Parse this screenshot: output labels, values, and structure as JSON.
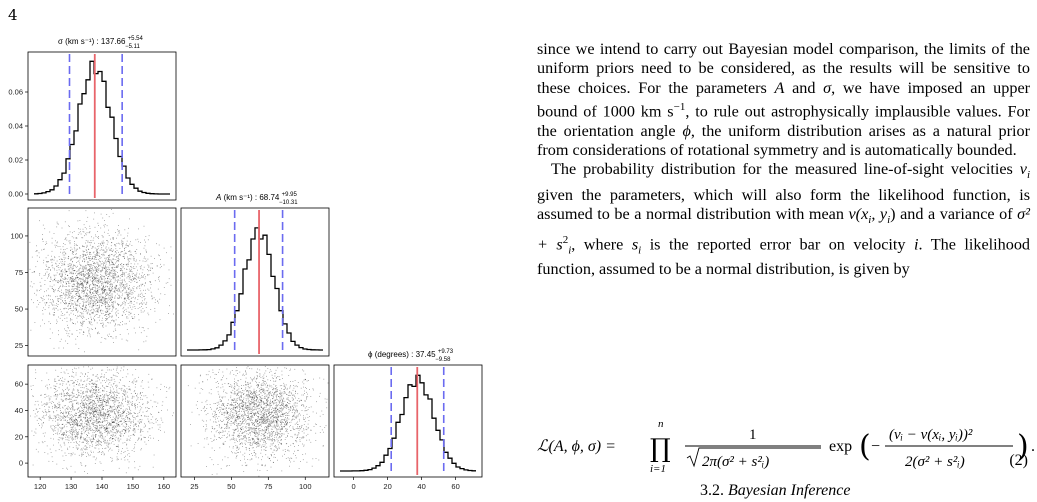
{
  "page_number": "4",
  "figure": {
    "panels": {
      "sigma_title": "σ (km s⁻¹) : 137.66",
      "sigma_sup": "+5.54",
      "sigma_sub": "−5.11",
      "A_title_italic": "A",
      "A_title": "(km s⁻¹) : 68.74",
      "A_sup": "+9.95",
      "A_sub": "−10.31",
      "phi_title": "ϕ (degrees) : 37.45",
      "phi_sup": "+9.73",
      "phi_sub": "−9.58"
    },
    "ticks": {
      "sigma_y": [
        "0.06",
        "0.04",
        "0.02",
        "0.00"
      ],
      "A_y": [
        "100",
        "75",
        "50",
        "25"
      ],
      "phi_y": [
        "60",
        "40",
        "20",
        "0"
      ],
      "sigma_x": [
        "120",
        "130",
        "140",
        "150",
        "160"
      ],
      "A_x": [
        "25",
        "50",
        "75",
        "100"
      ],
      "phi_x": [
        "0",
        "20",
        "40",
        "60"
      ]
    },
    "colors": {
      "median_line": "#e8646a",
      "quantile_line": "#6b6bf0",
      "hist": "#000000"
    }
  },
  "chart_data": [
    {
      "type": "histogram",
      "variable": "σ (km s⁻¹)",
      "median": 137.66,
      "upper_err": 5.54,
      "lower_err": 5.11,
      "x_range": [
        118,
        162
      ],
      "y_range": [
        0,
        0.08
      ]
    },
    {
      "type": "histogram",
      "variable": "A (km s⁻¹)",
      "median": 68.74,
      "upper_err": 9.95,
      "lower_err": 10.31,
      "x_range": [
        20,
        112
      ],
      "y_range": [
        0,
        0.045
      ]
    },
    {
      "type": "histogram",
      "variable": "ϕ (degrees)",
      "median": 37.45,
      "upper_err": 9.73,
      "lower_err": 9.58,
      "x_range": [
        -8,
        72
      ],
      "y_range": [
        0,
        0.045
      ]
    },
    {
      "type": "scatter",
      "x": "σ (km s⁻¹)",
      "y": "A (km s⁻¹)",
      "x_range": [
        118,
        162
      ],
      "y_range": [
        22,
        115
      ]
    },
    {
      "type": "scatter",
      "x": "σ (km s⁻¹)",
      "y": "ϕ (degrees)",
      "x_range": [
        118,
        162
      ],
      "y_range": [
        -6,
        70
      ]
    },
    {
      "type": "scatter",
      "x": "A (km s⁻¹)",
      "y": "ϕ (degrees)",
      "x_range": [
        20,
        112
      ],
      "y_range": [
        -6,
        70
      ]
    }
  ],
  "text": {
    "para1": "since we intend to carry out Bayesian model comparison, the limits of the uniform priors need to be considered, as the results will be sensitive to these choices. For the parameters",
    "p1_A": "A",
    "p1_and": "and",
    "p1_sigma": "σ",
    "p1_b": ", we have imposed an upper bound of 1000 km s",
    "p1_exp": "−1",
    "p1_c": ", to rule out astrophysically implausible values. For the orientation angle",
    "p1_phi": "ϕ",
    "p1_d": ", the uniform distribution arises as a natural prior from considerations of rotational symmetry and is automatically bounded.",
    "p2_a": "The probability distribution for the measured line-of-sight velocities",
    "p2_vi": "v",
    "p2_i": "i",
    "p2_b": "given the parameters, which will also form the likelihood function, is assumed to be a normal distribution with mean",
    "p2_v": "v(x",
    "p2_c": ") and a variance of",
    "p2_var": "σ² + s",
    "p2_d": ", where",
    "p2_e": "is the reported error bar on velocity",
    "p2_f": ". The likelihood function, assumed to be a normal distribution, is given by"
  },
  "equation": {
    "lhs": "ℒ(A, ϕ, σ) =",
    "prod_top": "n",
    "prod": "∏",
    "prod_bot": "i=1",
    "frac1_num": "1",
    "frac1_den": "2π(σ² + s²ᵢ)",
    "exp": "exp",
    "frac2_num": "(vᵢ − v(xᵢ, yᵢ))²",
    "frac2_den": "2(σ² + s²ᵢ)",
    "number": "(2)"
  },
  "section_heading": {
    "num": "3.2.",
    "title": "Bayesian Inference"
  }
}
